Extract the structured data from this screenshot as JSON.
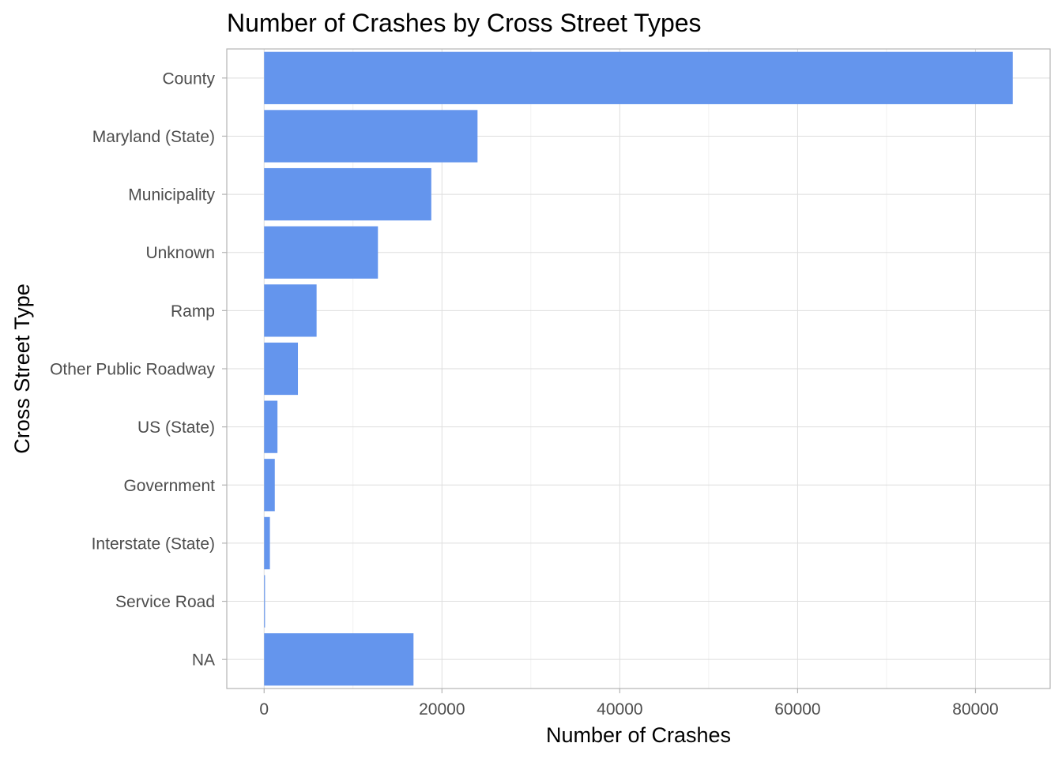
{
  "chart_data": {
    "type": "bar",
    "orientation": "horizontal",
    "title": "Number of Crashes by Cross Street Types",
    "xlabel": "Number of Crashes",
    "ylabel": "Cross Street Type",
    "categories": [
      "County",
      "Maryland (State)",
      "Municipality",
      "Unknown",
      "Ramp",
      "Other Public Roadway",
      "US (State)",
      "Government",
      "Interstate (State)",
      "Service Road",
      "NA"
    ],
    "values": [
      84200,
      24000,
      18800,
      12800,
      5900,
      3800,
      1500,
      1200,
      650,
      100,
      16800
    ],
    "xlim": [
      -4200,
      88400
    ],
    "xticks": [
      0,
      20000,
      40000,
      60000,
      80000
    ],
    "xtick_labels": [
      "0",
      "20000",
      "40000",
      "60000",
      "80000"
    ],
    "grid": true,
    "bar_color": "#6495ED"
  }
}
